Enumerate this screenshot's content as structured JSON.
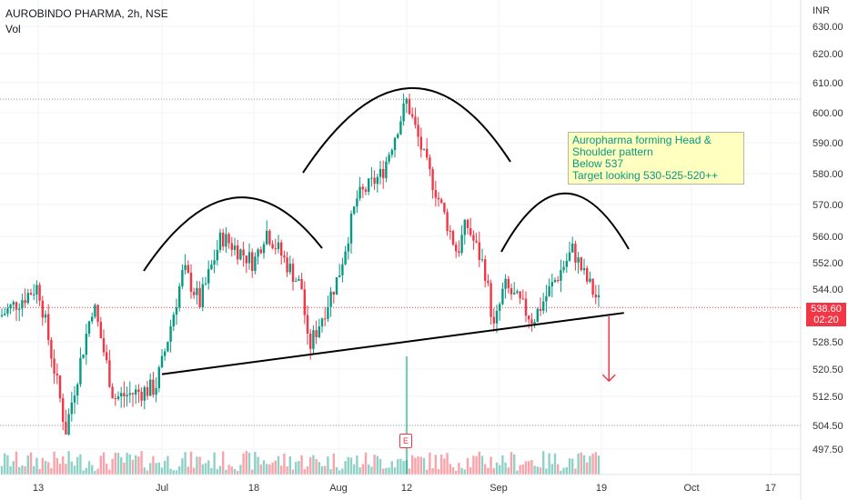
{
  "header": {
    "symbol": "AUROBINDO PHARMA, 2h, NSE",
    "volume_label": "Vol"
  },
  "price_axis": {
    "currency": "INR",
    "last_price": "538.60",
    "countdown": "02:20"
  },
  "annotation": {
    "lines": [
      "Auropharma forming Head &",
      "Shoulder pattern",
      "Below 537",
      "Target looking 530-525-520++"
    ]
  },
  "earnings_marker": "E",
  "colors": {
    "up": "#089981",
    "down": "#f23645",
    "pattern": "#000000",
    "note_bg": "#ffffbf"
  },
  "chart_data": {
    "type": "candlestick",
    "title": "AUROBINDO PHARMA, 2h, NSE",
    "y_ticks": [
      "630.00",
      "620.00",
      "610.00",
      "600.00",
      "590.00",
      "580.00",
      "570.00",
      "560.00",
      "552.00",
      "544.00",
      "528.50",
      "520.50",
      "512.50",
      "504.50",
      "497.50"
    ],
    "y_tick_values": [
      630,
      620,
      610,
      600,
      590,
      580,
      570,
      560,
      552,
      544,
      528.5,
      520.5,
      512.5,
      504.5,
      497.5
    ],
    "x_ticks": [
      "13",
      "Jul",
      "18",
      "Aug",
      "12",
      "Sep",
      "19",
      "Oct",
      "17"
    ],
    "x_tick_dates": [
      "2022-06-13",
      "2022-07-01",
      "2022-07-18",
      "2022-08-01",
      "2022-08-12",
      "2022-09-01",
      "2022-09-19",
      "2022-10-01",
      "2022-10-17"
    ],
    "last_price": 538.6,
    "reference_levels": [
      604.5,
      538.6,
      504.5
    ],
    "key_points": [
      {
        "date": "2022-06-06",
        "price": 536
      },
      {
        "date": "2022-06-13",
        "price": 545
      },
      {
        "date": "2022-06-17",
        "price": 503
      },
      {
        "date": "2022-06-21",
        "price": 540
      },
      {
        "date": "2022-06-24",
        "price": 512
      },
      {
        "date": "2022-06-30",
        "price": 515
      },
      {
        "date": "2022-07-01",
        "price": 522
      },
      {
        "date": "2022-07-05",
        "price": 550
      },
      {
        "date": "2022-07-08",
        "price": 540
      },
      {
        "date": "2022-07-12",
        "price": 560
      },
      {
        "date": "2022-07-18",
        "price": 552
      },
      {
        "date": "2022-07-20",
        "price": 562
      },
      {
        "date": "2022-07-26",
        "price": 544
      },
      {
        "date": "2022-07-27",
        "price": 526
      },
      {
        "date": "2022-08-01",
        "price": 548
      },
      {
        "date": "2022-08-04",
        "price": 572
      },
      {
        "date": "2022-08-08",
        "price": 580
      },
      {
        "date": "2022-08-12",
        "price": 604
      },
      {
        "date": "2022-08-16",
        "price": 584
      },
      {
        "date": "2022-08-23",
        "price": 555
      },
      {
        "date": "2022-08-25",
        "price": 564
      },
      {
        "date": "2022-08-29",
        "price": 550
      },
      {
        "date": "2022-08-31",
        "price": 532
      },
      {
        "date": "2022-09-02",
        "price": 545
      },
      {
        "date": "2022-09-07",
        "price": 535
      },
      {
        "date": "2022-09-12",
        "price": 550
      },
      {
        "date": "2022-09-14",
        "price": 556
      },
      {
        "date": "2022-09-16",
        "price": 548
      },
      {
        "date": "2022-09-19",
        "price": 538.6
      }
    ],
    "volume_spike_date": "2022-08-12",
    "drawings": {
      "neckline": [
        {
          "date": "2022-07-01",
          "price": 519
        },
        {
          "date": "2022-09-22",
          "price": 537
        }
      ],
      "target_arrow": {
        "date": "2022-09-20",
        "from": 536,
        "to": 517
      }
    }
  }
}
